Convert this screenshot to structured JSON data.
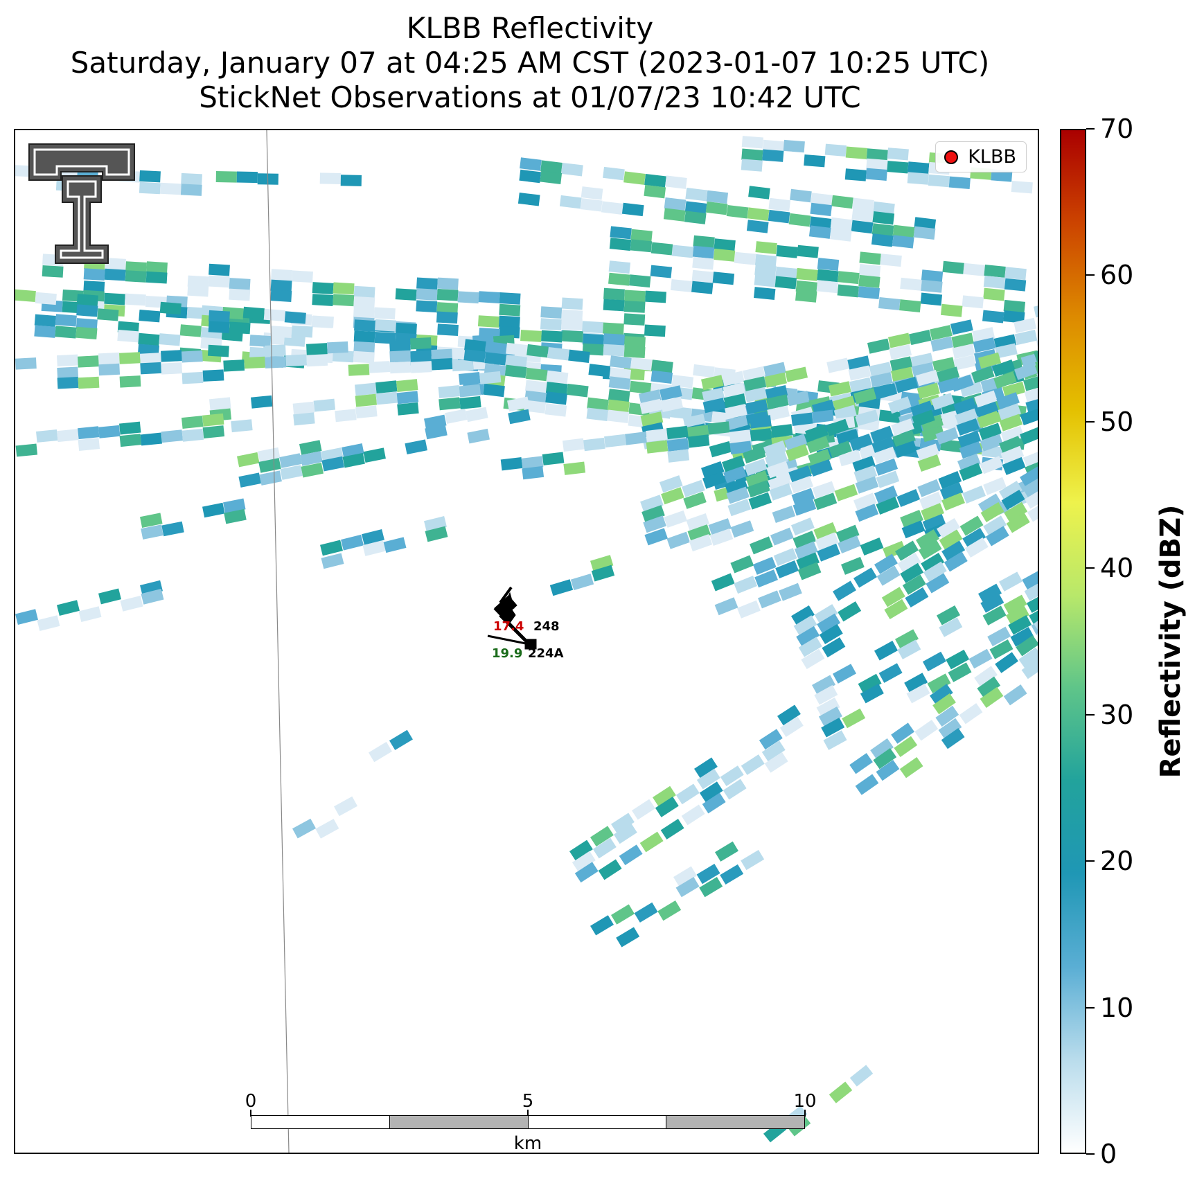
{
  "titles": {
    "line1": "KLBB Reflectivity",
    "line2": "Saturday, January 07 at 04:25 AM CST (2023-01-07 10:25 UTC)",
    "line3": "StickNet Observations at 01/07/23 10:42 UTC"
  },
  "legend": {
    "label": "KLBB",
    "marker_color": "#ee1111"
  },
  "colorbar": {
    "title": "Reflectivity (dBZ)",
    "ticks": [
      "0",
      "10",
      "20",
      "30",
      "40",
      "50",
      "60",
      "70"
    ],
    "range": [
      0,
      70
    ],
    "stops": [
      "#ffffff",
      "#b9dcec",
      "#5aaed4",
      "#1f97b5",
      "#22a39c",
      "#5fc589",
      "#b8e86a",
      "#eef24c",
      "#e4c000",
      "#dd8a00",
      "#cc4400",
      "#aa0000"
    ]
  },
  "scalebar": {
    "ticks": [
      "0",
      "5",
      "10"
    ],
    "unit": "km"
  },
  "stations": [
    {
      "id": "248",
      "value": "17.4",
      "value_color": "#cc0000"
    },
    {
      "id": "224A",
      "value": "19.9",
      "value_color": "#1a6b1a"
    }
  ],
  "logo": {
    "name": "texas-tech-double-t-logo",
    "color": "#555555"
  }
}
